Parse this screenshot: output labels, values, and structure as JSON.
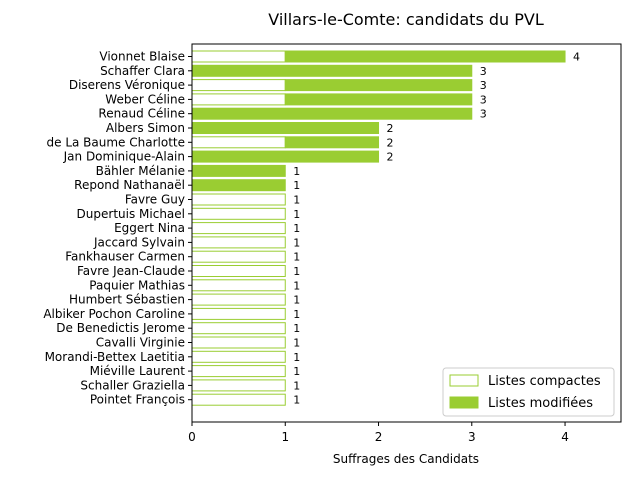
{
  "chart_data": {
    "type": "bar",
    "orientation": "horizontal",
    "stacked": true,
    "title": "Villars-le-Comte: candidats du PVL",
    "xlabel": "Suffrages des Candidats",
    "ylabel": "",
    "xlim": [
      0,
      4.6
    ],
    "xticks": [
      "0",
      "1",
      "2",
      "3",
      "4"
    ],
    "grid": false,
    "legend_position": "lower-right",
    "colors": {
      "accent": "#9acd32",
      "background": "#ffffff",
      "axis": "#000000"
    },
    "categories": [
      "Vionnet Blaise",
      "Schaffer Clara",
      "Diserens Véronique",
      "Weber Céline",
      "Renaud Céline",
      "Albers Simon",
      "de La Baume Charlotte",
      "Jan Dominique-Alain",
      "Bähler Mélanie",
      "Repond Nathanaël",
      "Favre Guy",
      "Dupertuis Michael",
      "Eggert Nina",
      "Jaccard Sylvain",
      "Fankhauser Carmen",
      "Favre Jean-Claude",
      "Paquier Mathias",
      "Humbert Sébastien",
      "Albiker Pochon Caroline",
      "De Benedictis Jerome",
      "Cavalli Virginie",
      "Morandi-Bettex Laetitia",
      "Miéville Laurent",
      "Schaller Graziella",
      "Pointet François"
    ],
    "series": [
      {
        "name": "Listes compactes",
        "style": "outline",
        "values": [
          1,
          0,
          1,
          1,
          0,
          0,
          1,
          0,
          0,
          0,
          1,
          1,
          1,
          1,
          1,
          1,
          1,
          1,
          1,
          1,
          1,
          1,
          1,
          1,
          1
        ]
      },
      {
        "name": "Listes modifiées",
        "style": "filled",
        "values": [
          3,
          3,
          2,
          2,
          3,
          2,
          1,
          2,
          1,
          1,
          0,
          0,
          0,
          0,
          0,
          0,
          0,
          0,
          0,
          0,
          0,
          0,
          0,
          0,
          0
        ]
      }
    ],
    "totals": [
      "4",
      "3",
      "3",
      "3",
      "3",
      "2",
      "2",
      "2",
      "1",
      "1",
      "1",
      "1",
      "1",
      "1",
      "1",
      "1",
      "1",
      "1",
      "1",
      "1",
      "1",
      "1",
      "1",
      "1",
      "1"
    ]
  }
}
